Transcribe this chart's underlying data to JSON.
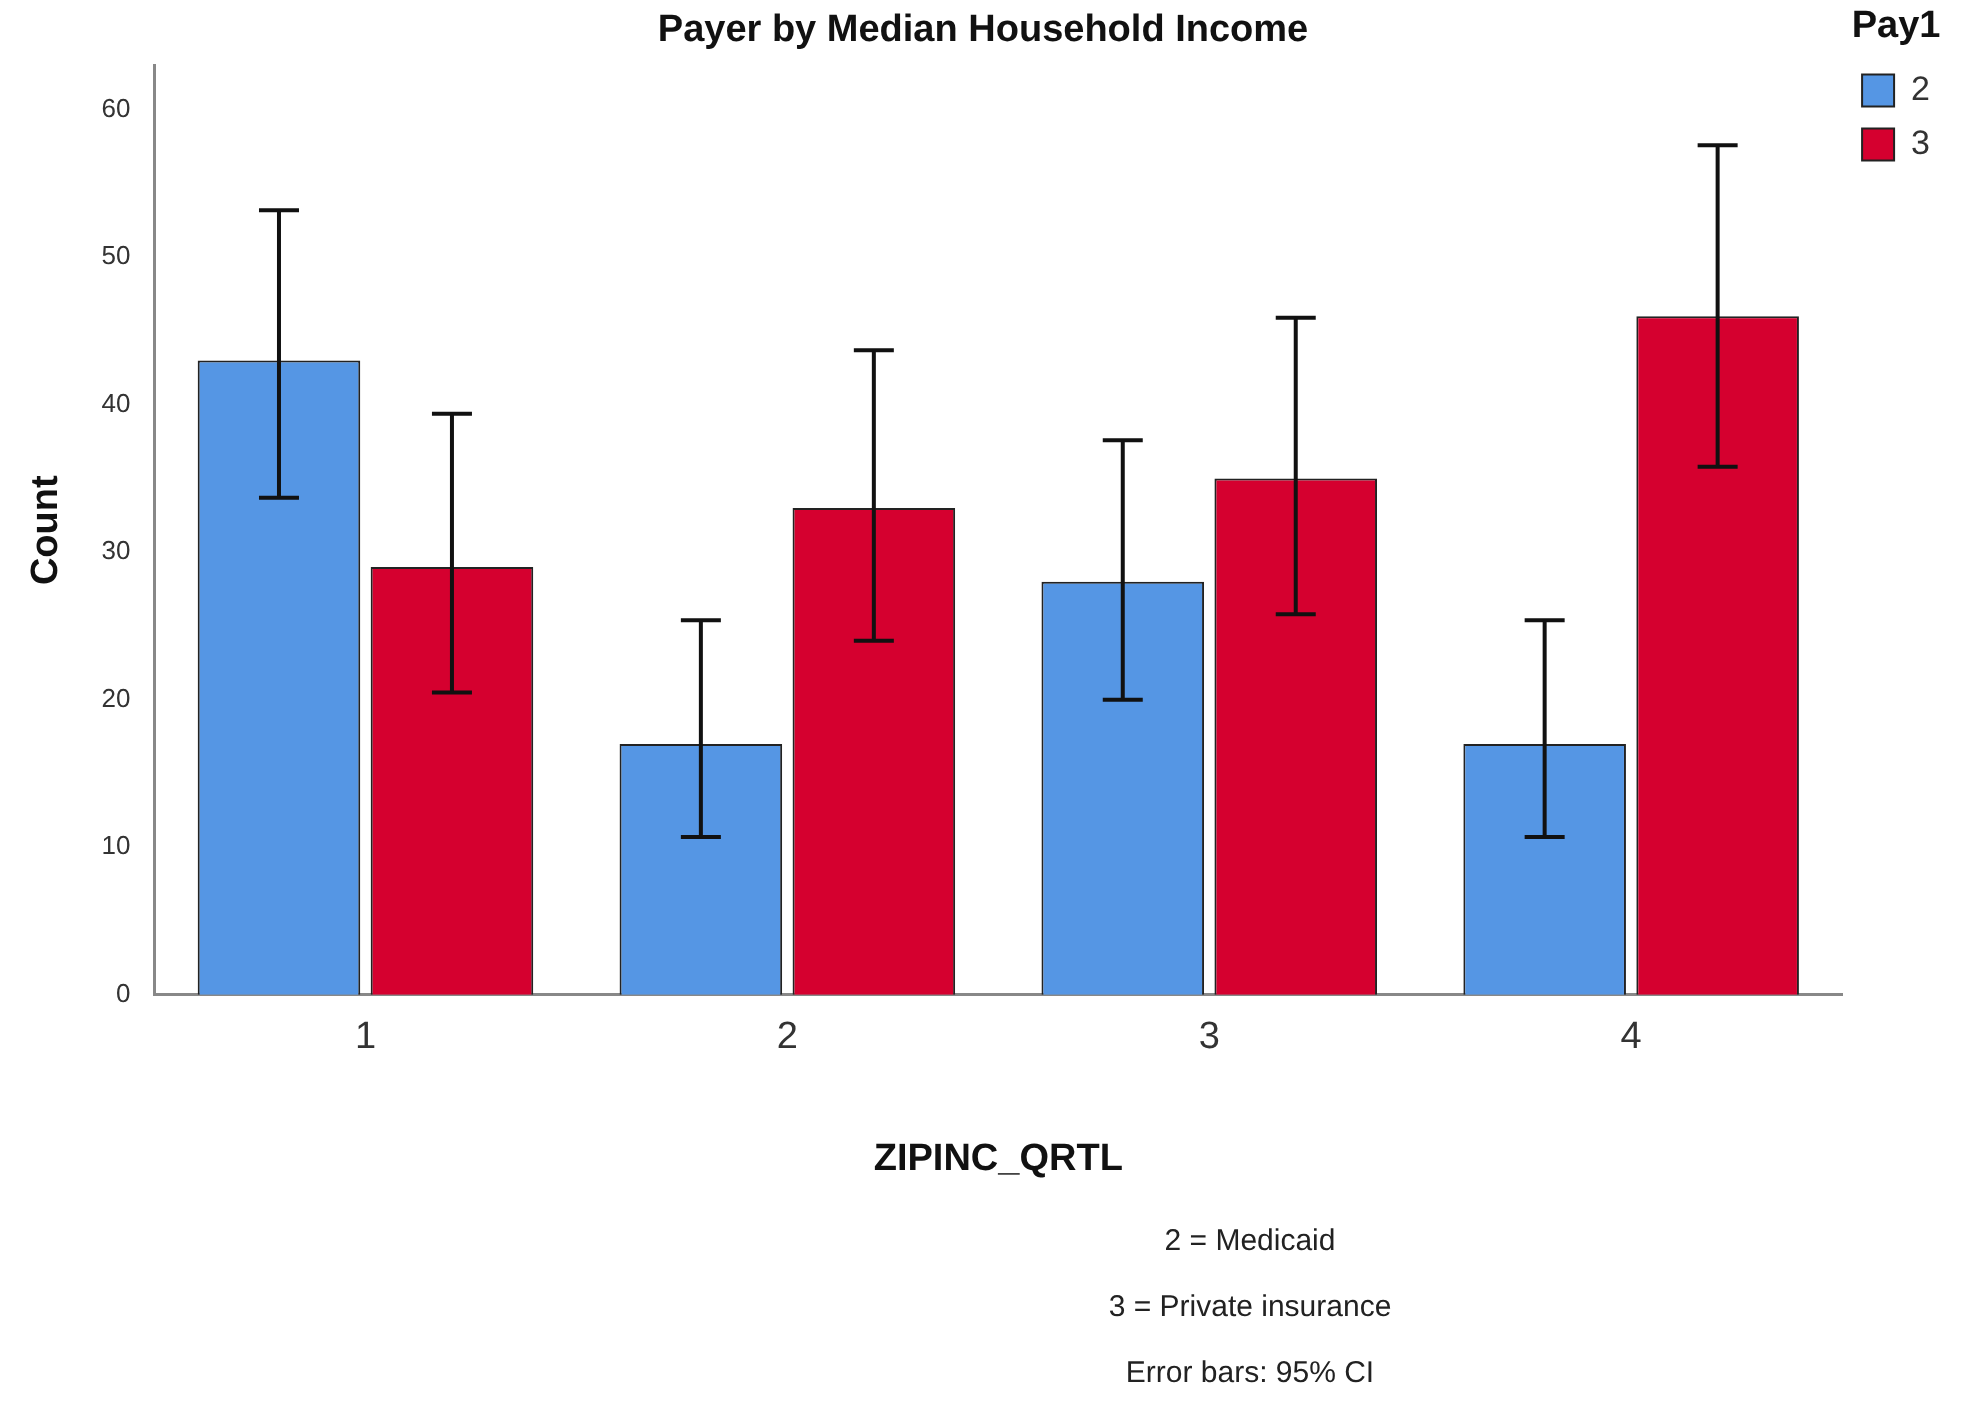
{
  "chart_data": {
    "type": "bar",
    "title": "Payer by Median Household Income",
    "xlabel": "ZIPINC_QRTL",
    "ylabel": "Count",
    "legend_title": "Pay1",
    "categories": [
      "1",
      "2",
      "3",
      "4"
    ],
    "series": [
      {
        "name": "2",
        "color": "#5596e4",
        "values": [
          43,
          17,
          28,
          17
        ],
        "errors": [
          [
            33.7,
            53.2
          ],
          [
            10.7,
            25.4
          ],
          [
            20,
            37.6
          ],
          [
            10.7,
            25.4
          ]
        ]
      },
      {
        "name": "3",
        "color": "#d5002f",
        "values": [
          29,
          33,
          35,
          46
        ],
        "errors": [
          [
            20.5,
            39.4
          ],
          [
            24,
            43.7
          ],
          [
            25.8,
            45.9
          ],
          [
            35.8,
            57.6
          ]
        ]
      }
    ],
    "ylim": [
      0,
      63
    ],
    "yticks": [
      0,
      10,
      20,
      30,
      40,
      50,
      60
    ],
    "grid": false,
    "legend": "top right",
    "annotations": [
      "2 = Medicaid",
      "3 = Private insurance",
      "Error bars: 95% CI"
    ]
  }
}
